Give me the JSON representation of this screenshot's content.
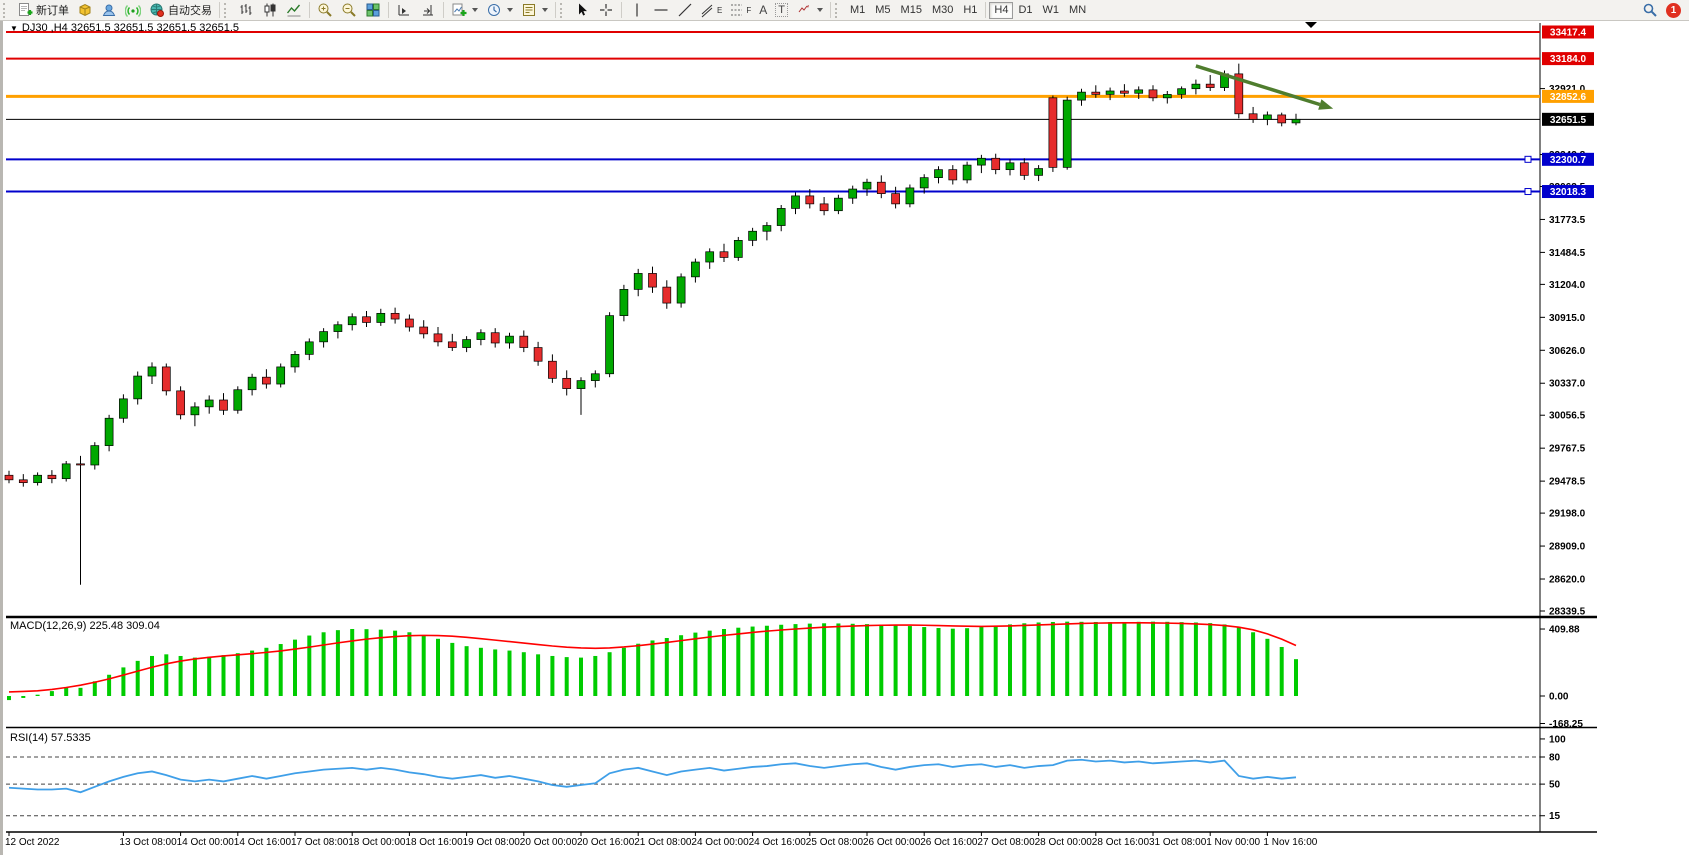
{
  "toolbar": {
    "new_order_label": "新订单",
    "auto_trading_label": "自动交易",
    "text_tool_glyph": "A",
    "label_tool_glyph": "T",
    "channel_glyph": "E",
    "fibo_glyph": "F",
    "timeframes": [
      "M1",
      "M5",
      "M15",
      "M30",
      "H1",
      "H4",
      "D1",
      "W1",
      "MN"
    ],
    "active_timeframe": "H4",
    "notification_count": "1"
  },
  "chart": {
    "window_marker": "▼",
    "title": "DJ30 ,H4 32651.5 32651.5 32651.5 32651.5"
  },
  "chart_data": {
    "type": "candlestick",
    "symbol": "DJ30",
    "timeframe": "H4",
    "title": "DJ30 ,H4 32651.5 32651.5 32651.5 32651.5",
    "current_price": 32651.5,
    "x_labels": [
      "12 Oct 2022",
      "13 Oct 08:00",
      "14 Oct 00:00",
      "14 Oct 16:00",
      "17 Oct 08:00",
      "18 Oct 00:00",
      "18 Oct 16:00",
      "19 Oct 08:00",
      "20 Oct 00:00",
      "20 Oct 16:00",
      "21 Oct 08:00",
      "24 Oct 00:00",
      "24 Oct 16:00",
      "25 Oct 08:00",
      "26 Oct 00:00",
      "26 Oct 16:00",
      "27 Oct 08:00",
      "28 Oct 00:00",
      "28 Oct 16:00",
      "31 Oct 08:00",
      "1 Nov 00:00",
      "1 Nov 16:00"
    ],
    "price_ticks": [
      32921.0,
      32342.8,
      32062.5,
      31773.5,
      31484.5,
      31204.0,
      30915.0,
      30626.0,
      30337.0,
      30056.5,
      29767.5,
      29478.5,
      29198.0,
      28909.0,
      28620.0,
      28339.5
    ],
    "hlines": [
      {
        "value": 33417.4,
        "color": "#e00000",
        "width": 2,
        "handle": false
      },
      {
        "value": 33184.0,
        "color": "#e00000",
        "width": 2,
        "handle": false
      },
      {
        "value": 32852.6,
        "color": "#ffa000",
        "width": 3,
        "handle": false
      },
      {
        "value": 32651.5,
        "color": "#000000",
        "width": 1,
        "handle": false
      },
      {
        "value": 32300.7,
        "color": "#0000cc",
        "width": 2,
        "handle": true
      },
      {
        "value": 32018.3,
        "color": "#0000cc",
        "width": 2,
        "handle": true
      }
    ],
    "trend_arrow": {
      "from_bar": 83,
      "from_price": 33120,
      "to_bar": 92.6,
      "to_price": 32745,
      "color": "#4f7d2e"
    },
    "candles": [
      [
        29530,
        29570,
        29460,
        29490
      ],
      [
        29490,
        29540,
        29430,
        29465
      ],
      [
        29465,
        29555,
        29440,
        29530
      ],
      [
        29530,
        29575,
        29460,
        29500
      ],
      [
        29500,
        29655,
        29475,
        29630
      ],
      [
        29630,
        29700,
        28570,
        29620
      ],
      [
        29620,
        29820,
        29580,
        29790
      ],
      [
        29790,
        30060,
        29740,
        30030
      ],
      [
        30030,
        30240,
        29990,
        30200
      ],
      [
        30200,
        30440,
        30150,
        30400
      ],
      [
        30400,
        30520,
        30330,
        30480
      ],
      [
        30480,
        30510,
        30230,
        30270
      ],
      [
        30270,
        30310,
        30020,
        30060
      ],
      [
        30060,
        30170,
        29960,
        30130
      ],
      [
        30130,
        30230,
        30070,
        30190
      ],
      [
        30190,
        30250,
        30060,
        30100
      ],
      [
        30100,
        30310,
        30070,
        30280
      ],
      [
        30280,
        30420,
        30230,
        30390
      ],
      [
        30390,
        30460,
        30290,
        30330
      ],
      [
        30330,
        30510,
        30300,
        30480
      ],
      [
        30480,
        30620,
        30430,
        30590
      ],
      [
        30590,
        30730,
        30540,
        30700
      ],
      [
        30700,
        30820,
        30650,
        30790
      ],
      [
        30790,
        30880,
        30730,
        30850
      ],
      [
        30850,
        30950,
        30800,
        30920
      ],
      [
        30920,
        30970,
        30830,
        30870
      ],
      [
        30870,
        30990,
        30840,
        30950
      ],
      [
        30950,
        31000,
        30860,
        30900
      ],
      [
        30900,
        30940,
        30790,
        30830
      ],
      [
        30830,
        30890,
        30730,
        30770
      ],
      [
        30770,
        30830,
        30660,
        30700
      ],
      [
        30700,
        30770,
        30620,
        30650
      ],
      [
        30650,
        30750,
        30610,
        30720
      ],
      [
        30720,
        30810,
        30670,
        30780
      ],
      [
        30780,
        30820,
        30650,
        30690
      ],
      [
        30690,
        30780,
        30640,
        30750
      ],
      [
        30750,
        30800,
        30610,
        30650
      ],
      [
        30650,
        30700,
        30490,
        30530
      ],
      [
        30530,
        30590,
        30340,
        30380
      ],
      [
        30380,
        30450,
        30230,
        30290
      ],
      [
        30290,
        30390,
        30060,
        30360
      ],
      [
        30360,
        30450,
        30300,
        30420
      ],
      [
        30420,
        30960,
        30390,
        30930
      ],
      [
        30930,
        31200,
        30880,
        31160
      ],
      [
        31160,
        31340,
        31100,
        31300
      ],
      [
        31300,
        31360,
        31130,
        31180
      ],
      [
        31180,
        31240,
        30990,
        31040
      ],
      [
        31040,
        31300,
        31000,
        31270
      ],
      [
        31270,
        31430,
        31220,
        31400
      ],
      [
        31400,
        31520,
        31340,
        31490
      ],
      [
        31490,
        31560,
        31400,
        31440
      ],
      [
        31440,
        31620,
        31410,
        31590
      ],
      [
        31590,
        31700,
        31540,
        31670
      ],
      [
        31670,
        31750,
        31590,
        31720
      ],
      [
        31720,
        31900,
        31670,
        31870
      ],
      [
        31870,
        32010,
        31820,
        31980
      ],
      [
        31980,
        32040,
        31870,
        31910
      ],
      [
        31910,
        31970,
        31810,
        31850
      ],
      [
        31850,
        31990,
        31820,
        31960
      ],
      [
        31960,
        32070,
        31910,
        32040
      ],
      [
        32040,
        32130,
        31980,
        32100
      ],
      [
        32100,
        32160,
        31960,
        32000
      ],
      [
        32000,
        32060,
        31870,
        31910
      ],
      [
        31910,
        32080,
        31880,
        32050
      ],
      [
        32050,
        32170,
        32000,
        32140
      ],
      [
        32140,
        32240,
        32090,
        32210
      ],
      [
        32210,
        32250,
        32080,
        32120
      ],
      [
        32120,
        32280,
        32090,
        32250
      ],
      [
        32250,
        32340,
        32180,
        32310
      ],
      [
        32310,
        32350,
        32170,
        32210
      ],
      [
        32210,
        32300,
        32160,
        32270
      ],
      [
        32270,
        32310,
        32120,
        32160
      ],
      [
        32160,
        32250,
        32110,
        32220
      ],
      [
        32840,
        32860,
        32190,
        32230
      ],
      [
        32230,
        32850,
        32210,
        32820
      ],
      [
        32820,
        32920,
        32770,
        32890
      ],
      [
        32890,
        32950,
        32840,
        32870
      ],
      [
        32870,
        32930,
        32820,
        32900
      ],
      [
        32900,
        32960,
        32850,
        32880
      ],
      [
        32880,
        32940,
        32830,
        32910
      ],
      [
        32910,
        32950,
        32810,
        32840
      ],
      [
        32840,
        32900,
        32790,
        32870
      ],
      [
        32870,
        32940,
        32830,
        32920
      ],
      [
        32920,
        33000,
        32870,
        32960
      ],
      [
        32960,
        33040,
        32900,
        32930
      ],
      [
        32930,
        33080,
        32900,
        33050
      ],
      [
        33050,
        33140,
        32660,
        32700
      ],
      [
        32700,
        32760,
        32620,
        32650
      ],
      [
        32650,
        32720,
        32600,
        32690
      ],
      [
        32690,
        32710,
        32590,
        32620
      ],
      [
        32620,
        32700,
        32600,
        32651.5
      ]
    ],
    "macd": {
      "label": "MACD(12,26,9) 225.48 309.04",
      "params": "12,26,9",
      "main_value": 225.48,
      "signal_value": 309.04,
      "axis_ticks": [
        409.88,
        0.0,
        -168.25
      ],
      "histogram_color": "#00cc00",
      "signal_color": "#ff0000",
      "histogram": [
        -25,
        -12,
        8,
        30,
        55,
        50,
        90,
        130,
        175,
        215,
        245,
        255,
        245,
        235,
        240,
        250,
        262,
        278,
        295,
        318,
        345,
        370,
        390,
        403,
        410,
        409,
        406,
        400,
        390,
        372,
        350,
        325,
        305,
        295,
        285,
        278,
        268,
        255,
        245,
        238,
        235,
        245,
        268,
        295,
        320,
        340,
        355,
        372,
        388,
        400,
        410,
        418,
        425,
        430,
        436,
        440,
        443,
        445,
        444,
        442,
        440,
        437,
        433,
        428,
        422,
        416,
        412,
        415,
        422,
        430,
        438,
        445,
        450,
        453,
        455,
        454,
        453,
        452,
        453,
        454,
        455,
        454,
        452,
        450,
        446,
        438,
        420,
        390,
        350,
        300,
        225.48
      ],
      "signal": [
        25,
        28,
        32,
        40,
        52,
        66,
        84,
        105,
        128,
        152,
        176,
        197,
        214,
        227,
        237,
        245,
        252,
        259,
        267,
        276,
        287,
        299,
        312,
        325,
        337,
        348,
        357,
        364,
        369,
        371,
        370,
        366,
        359,
        351,
        342,
        333,
        324,
        315,
        306,
        299,
        294,
        292,
        294,
        300,
        308,
        318,
        328,
        339,
        350,
        361,
        371,
        380,
        389,
        397,
        404,
        410,
        416,
        421,
        425,
        428,
        431,
        433,
        434,
        434,
        433,
        431,
        429,
        427,
        426,
        427,
        429,
        432,
        435,
        438,
        441,
        444,
        446,
        447,
        448,
        448,
        447,
        446,
        444,
        441,
        437,
        431,
        421,
        405,
        380,
        348,
        309.04
      ]
    },
    "rsi": {
      "label": "RSI(14) 57.5335",
      "period": 14,
      "value": 57.5335,
      "axis_ticks": [
        100,
        80,
        50,
        15
      ],
      "levels": [
        80,
        50,
        15
      ],
      "line_color": "#3f9fe8",
      "values": [
        46,
        45,
        44,
        44,
        45,
        41,
        47,
        53,
        58,
        62,
        64,
        60,
        55,
        53,
        55,
        53,
        56,
        59,
        56,
        59,
        62,
        64,
        66,
        67,
        68,
        66,
        68,
        66,
        63,
        61,
        58,
        56,
        58,
        60,
        57,
        59,
        56,
        53,
        49,
        47,
        49,
        51,
        62,
        66,
        68,
        64,
        60,
        64,
        66,
        68,
        65,
        67,
        69,
        70,
        72,
        73,
        70,
        68,
        70,
        72,
        73,
        69,
        66,
        69,
        71,
        72,
        69,
        71,
        72,
        69,
        71,
        68,
        70,
        71,
        76,
        77,
        75,
        76,
        74,
        75,
        73,
        74,
        75,
        76,
        74,
        76,
        59,
        56,
        58,
        56,
        57.5335
      ]
    }
  }
}
